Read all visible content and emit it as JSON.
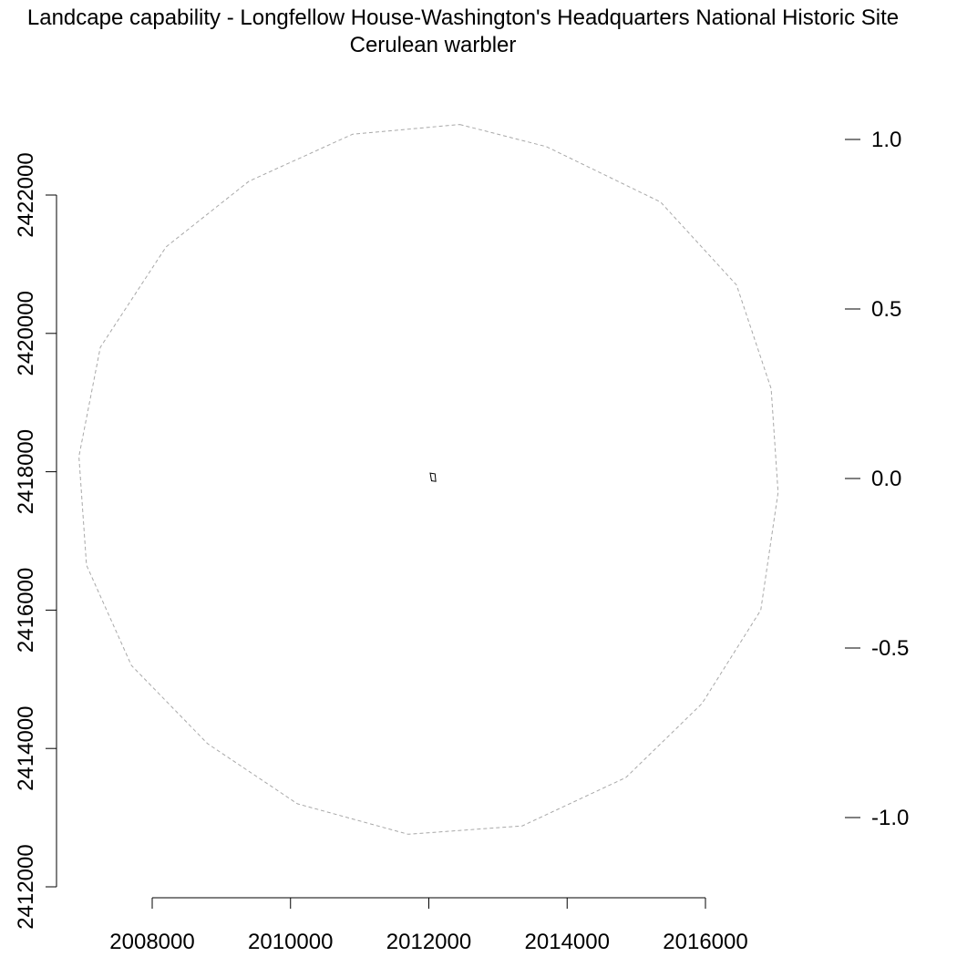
{
  "chart_data": {
    "type": "map",
    "title": "Landcape capability - Longfellow House-Washington's Headquarters National Historic Site",
    "subtitle": "Cerulean warbler",
    "x_axis": {
      "ticks": [
        2008000,
        2010000,
        2012000,
        2014000,
        2016000
      ],
      "tick_labels": [
        "2008000",
        "2010000",
        "2012000",
        "2014000",
        "2016000"
      ],
      "range": [
        2008000,
        2016000
      ]
    },
    "y_axis": {
      "ticks": [
        2412000,
        2414000,
        2416000,
        2418000,
        2420000,
        2422000
      ],
      "tick_labels": [
        "2412000",
        "2414000",
        "2416000",
        "2418000",
        "2420000",
        "2422000"
      ],
      "range": [
        2412000,
        2422000
      ]
    },
    "legend": {
      "placement": "right",
      "ticks": [
        1.0,
        0.5,
        0.0,
        -0.5,
        -1.0
      ],
      "tick_labels": [
        "1.0",
        "0.5",
        "0.0",
        "-0.5",
        "-1.0"
      ]
    },
    "buffer_circle": {
      "style": "dashed",
      "color": "#a8a8a8",
      "points": [
        [
          2012450,
          2423020
        ],
        [
          2013700,
          2422700
        ],
        [
          2015350,
          2421900
        ],
        [
          2016450,
          2420700
        ],
        [
          2016950,
          2419200
        ],
        [
          2017050,
          2417700
        ],
        [
          2016800,
          2416000
        ],
        [
          2015950,
          2414650
        ],
        [
          2014850,
          2413580
        ],
        [
          2013350,
          2412880
        ],
        [
          2011700,
          2412760
        ],
        [
          2010100,
          2413200
        ],
        [
          2008800,
          2414070
        ],
        [
          2007700,
          2415200
        ],
        [
          2007050,
          2416650
        ],
        [
          2006940,
          2418220
        ],
        [
          2007250,
          2419800
        ],
        [
          2008200,
          2421250
        ],
        [
          2009400,
          2422200
        ],
        [
          2010900,
          2422880
        ]
      ]
    },
    "park_boundary": {
      "color": "#000000",
      "points": [
        [
          2012020,
          2417980
        ],
        [
          2012090,
          2417970
        ],
        [
          2012100,
          2417860
        ],
        [
          2012040,
          2417870
        ]
      ]
    }
  }
}
